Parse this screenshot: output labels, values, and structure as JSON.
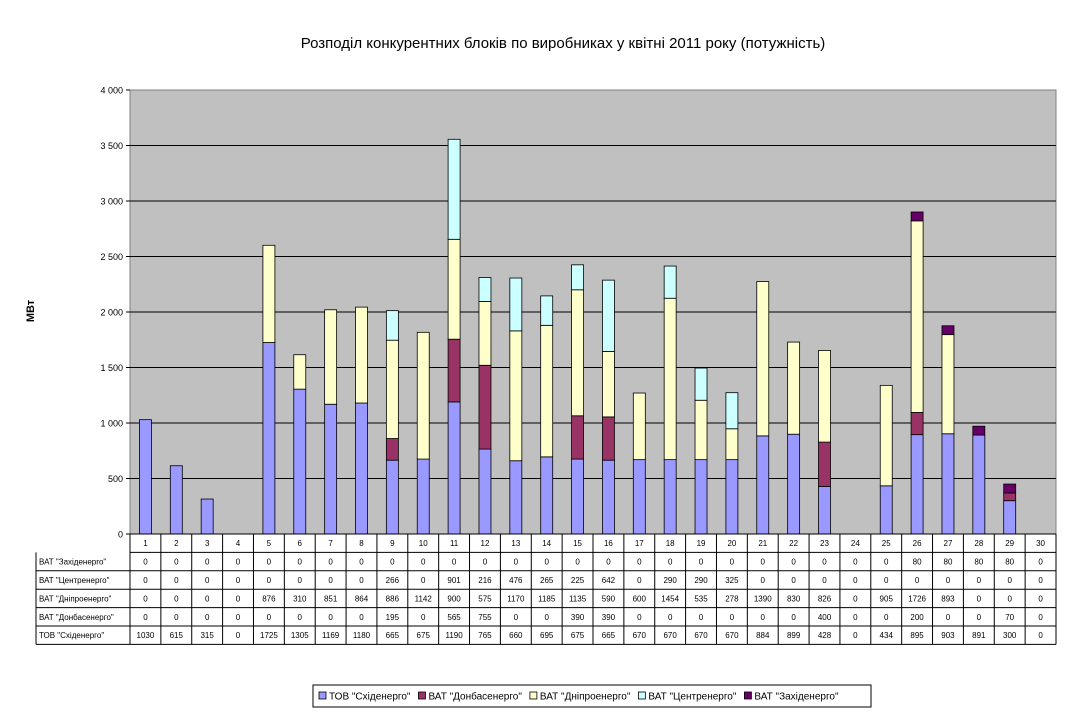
{
  "chart_data": {
    "type": "bar",
    "stacked": true,
    "title": "Розподіл конкурентних блоків по виробниках у квітні 2011 року (потужність)",
    "ylabel": "МВт",
    "xlabel": "",
    "ylim": [
      0,
      4000
    ],
    "yticks": [
      0,
      500,
      1000,
      1500,
      2000,
      2500,
      3000,
      3500,
      4000
    ],
    "ytick_labels": [
      "0",
      "500",
      "1 000",
      "1 500",
      "2 000",
      "2 500",
      "3 000",
      "3 500",
      "4 000"
    ],
    "grid": true,
    "legend_position": "bottom",
    "categories": [
      "1",
      "2",
      "3",
      "4",
      "5",
      "6",
      "7",
      "8",
      "9",
      "10",
      "11",
      "12",
      "13",
      "14",
      "15",
      "16",
      "17",
      "18",
      "19",
      "20",
      "21",
      "22",
      "23",
      "24",
      "25",
      "26",
      "27",
      "28",
      "29",
      "30"
    ],
    "series": [
      {
        "name": "ТОВ \"Східенерго\"",
        "color": "#9999FF",
        "values": [
          1030,
          615,
          315,
          0,
          1725,
          1305,
          1169,
          1180,
          665,
          675,
          1190,
          765,
          660,
          695,
          675,
          665,
          670,
          670,
          670,
          670,
          884,
          899,
          428,
          0,
          434,
          895,
          903,
          891,
          300,
          0
        ]
      },
      {
        "name": "ВАТ \"Донбасенерго\"",
        "color": "#993366",
        "values": [
          0,
          0,
          0,
          0,
          0,
          0,
          0,
          0,
          195,
          0,
          565,
          755,
          0,
          0,
          390,
          390,
          0,
          0,
          0,
          0,
          0,
          0,
          400,
          0,
          0,
          200,
          0,
          0,
          70,
          0
        ]
      },
      {
        "name": "ВАТ \"Дніпроенерго\"",
        "color": "#FFFFCC",
        "values": [
          0,
          0,
          0,
          0,
          876,
          310,
          851,
          864,
          886,
          1142,
          900,
          575,
          1170,
          1185,
          1135,
          590,
          600,
          1454,
          535,
          278,
          1390,
          830,
          826,
          0,
          905,
          1726,
          893,
          0,
          0,
          0
        ]
      },
      {
        "name": "ВАТ \"Центренерго\"",
        "color": "#CCFFFF",
        "values": [
          0,
          0,
          0,
          0,
          0,
          0,
          0,
          0,
          266,
          0,
          901,
          216,
          476,
          265,
          225,
          642,
          0,
          290,
          290,
          325,
          0,
          0,
          0,
          0,
          0,
          0,
          0,
          0,
          0,
          0
        ]
      },
      {
        "name": "ВАТ \"Західенерго\"",
        "color": "#660066",
        "values": [
          0,
          0,
          0,
          0,
          0,
          0,
          0,
          0,
          0,
          0,
          0,
          0,
          0,
          0,
          0,
          0,
          0,
          0,
          0,
          0,
          0,
          0,
          0,
          0,
          0,
          80,
          80,
          80,
          80,
          0
        ]
      }
    ],
    "table_row_order": [
      4,
      3,
      2,
      1,
      0
    ]
  }
}
